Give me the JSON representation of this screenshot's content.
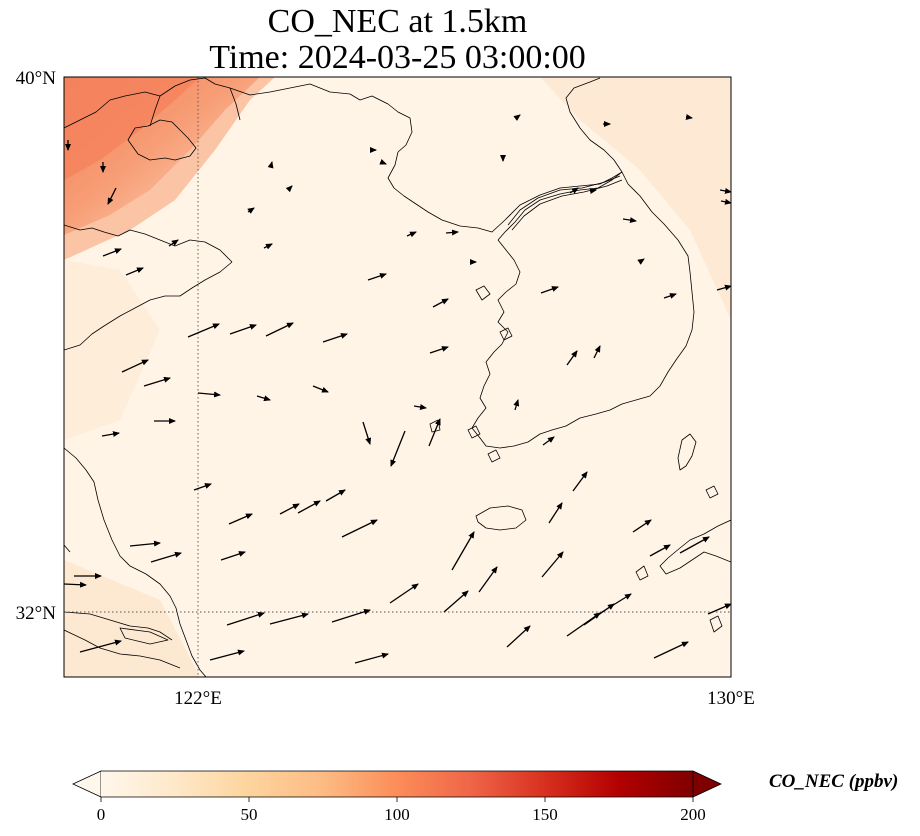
{
  "title": {
    "line1": "CO_NEC at 1.5km",
    "line2": "Time: 2024-03-25 03:00:00"
  },
  "map": {
    "lon_range": [
      120.6,
      130
    ],
    "lat_range": [
      31,
      40
    ],
    "lat_ticks": [
      {
        "value": 40,
        "label": "40°N"
      },
      {
        "value": 32,
        "label": "32°N"
      }
    ],
    "lon_ticks": [
      {
        "value": 122,
        "label": "122°E"
      },
      {
        "value": 130,
        "label": "130°E"
      }
    ],
    "gridlines": {
      "lons": [
        122
      ],
      "lats": [
        32
      ],
      "style": "dotted"
    },
    "background_color": "#fff4e6",
    "coastline_color": "#000000",
    "high_concentration_region": "northwest corner (Bohai / Liaodong), values ~70-110 ppbv"
  },
  "colorbar": {
    "label": "CO_NEC (ppbv)",
    "min": 0,
    "max": 200,
    "ticks": [
      {
        "value": 0,
        "label": "0"
      },
      {
        "value": 50,
        "label": "50"
      },
      {
        "value": 100,
        "label": "100"
      },
      {
        "value": 150,
        "label": "150"
      },
      {
        "value": 200,
        "label": "200"
      }
    ],
    "extend": "both",
    "colormap": "OrRd",
    "stops": [
      "#fff7ec",
      "#fee8c8",
      "#fdd49e",
      "#fdbb84",
      "#fc8d59",
      "#ef6548",
      "#d7301f",
      "#b30000",
      "#7f0000"
    ]
  }
}
